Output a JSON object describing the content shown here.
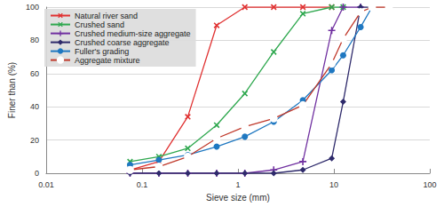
{
  "chart_data": {
    "type": "line",
    "x_label": "Sieve size (mm)",
    "y_label": "Finer than (%)",
    "log": "x",
    "grid": true,
    "legend": "top-left",
    "xlim": [
      0.01,
      100
    ],
    "xticks": [
      0.01,
      0.1,
      1,
      10,
      100
    ],
    "ylim": [
      0,
      100
    ],
    "yticks": [
      0,
      20,
      40,
      60,
      80,
      100
    ],
    "series": [
      {
        "name": "Natural river sand",
        "color": "#e03131",
        "marker": "x",
        "x": [
          0.075,
          0.15,
          0.3,
          0.6,
          1.18,
          2.36,
          4.75,
          9.5
        ],
        "values": [
          2,
          7,
          34,
          89,
          100,
          100,
          100,
          100
        ]
      },
      {
        "name": "Crushed sand",
        "color": "#2fa84f",
        "marker": "x",
        "x": [
          0.075,
          0.15,
          0.3,
          0.6,
          1.18,
          2.36,
          4.75,
          9.5,
          12.5
        ],
        "values": [
          7,
          10,
          15,
          29,
          48,
          73,
          96,
          100,
          100
        ]
      },
      {
        "name": "Crushed medium-size aggregate",
        "color": "#7030a0",
        "marker": "plus",
        "x": [
          0.075,
          0.15,
          0.3,
          0.6,
          1.18,
          2.36,
          4.75,
          9.5,
          12.5,
          19
        ],
        "values": [
          0,
          0,
          0,
          0,
          0,
          2,
          7,
          86,
          100,
          100
        ]
      },
      {
        "name": "Crushed coarse aggregate",
        "color": "#2e2a6b",
        "marker": "diamond",
        "x": [
          0.075,
          0.15,
          0.3,
          0.6,
          1.18,
          2.36,
          4.75,
          9.5,
          12.5,
          19,
          25
        ],
        "values": [
          0,
          0,
          0,
          0,
          0,
          0,
          2,
          9,
          43,
          100,
          100
        ]
      },
      {
        "name": "Fuller's grading",
        "color": "#1f78c1",
        "marker": "circle",
        "x": [
          0.075,
          0.15,
          0.3,
          0.6,
          1.18,
          2.36,
          4.75,
          9.5,
          12.5,
          19,
          25
        ],
        "values": [
          5,
          8,
          11,
          16,
          22,
          31,
          44,
          62,
          71,
          88,
          100
        ]
      },
      {
        "name": "Aggregate mixture",
        "color": "#c0392b",
        "marker": "open_circle",
        "x": [
          0.075,
          0.15,
          0.3,
          0.6,
          1.18,
          2.36,
          4.75,
          9.5,
          12.5,
          19,
          25,
          37.5
        ],
        "values": [
          2,
          4,
          10,
          21,
          28,
          33,
          41,
          66,
          81,
          97,
          100,
          100
        ]
      }
    ]
  }
}
